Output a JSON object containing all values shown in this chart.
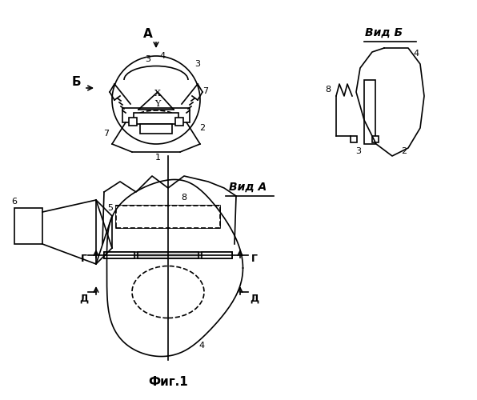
{
  "title": "Фиг.1",
  "background": "#ffffff",
  "label_A": "А",
  "label_B": "Б",
  "label_vid_A": "Вид А",
  "label_vid_B": "Вид Б",
  "label_G": "Г",
  "label_D": "Д",
  "label_fig": "Фиг.1",
  "linecolor": "#000000",
  "linewidth": 1.2
}
